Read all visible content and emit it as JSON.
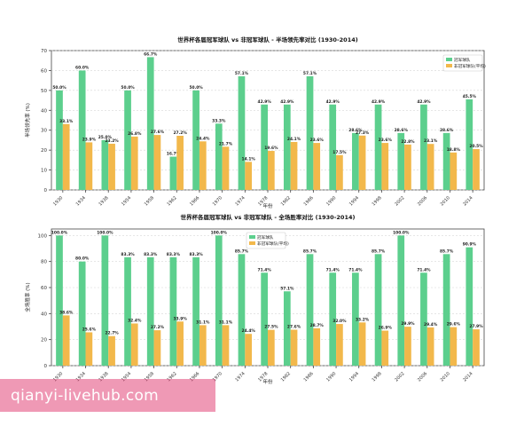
{
  "watermark": "qianyi-livehub.com",
  "colors": {
    "champion": "#5ccf8d",
    "non_champion": "#f2b84b"
  },
  "chart_data": [
    {
      "type": "bar",
      "title": "世界杯各届冠军球队 vs 非冠军球队 - 半场领先率对比 (1930-2014)",
      "xlabel": "年份",
      "ylabel": "半场领先率 (%)",
      "ylim": [
        0,
        70
      ],
      "yticks": [
        0,
        10,
        20,
        30,
        40,
        50,
        60,
        70
      ],
      "grid": true,
      "legend_position": "top-right",
      "categories": [
        "1930",
        "1934",
        "1938",
        "1954",
        "1958",
        "1962",
        "1966",
        "1970",
        "1974",
        "1978",
        "1982",
        "1986",
        "1990",
        "1994",
        "1998",
        "2002",
        "2006",
        "2010",
        "2014"
      ],
      "series": [
        {
          "name": "冠军球队",
          "values": [
            50.0,
            60.0,
            25.0,
            50.0,
            66.7,
            16.7,
            50.0,
            33.3,
            57.1,
            42.9,
            42.9,
            57.1,
            42.9,
            28.6,
            42.9,
            28.6,
            42.9,
            28.6,
            45.5
          ],
          "labels": [
            "50.0%",
            "60.0%",
            "25.0%",
            "50.0%",
            "66.7%",
            "16.7%",
            "50.0%",
            "33.3%",
            "57.1%",
            "42.9%",
            "42.9%",
            "57.1%",
            "42.9%",
            "28.6%",
            "42.9%",
            "28.6%",
            "42.9%",
            "28.6%",
            "45.5%"
          ]
        },
        {
          "name": "非冠军球队(平均)",
          "values": [
            33.1,
            23.9,
            23.2,
            26.8,
            27.6,
            27.2,
            24.4,
            21.7,
            14.1,
            19.6,
            24.1,
            23.6,
            17.5,
            27.3,
            23.6,
            22.8,
            23.1,
            18.8,
            20.5
          ],
          "labels": [
            "33.1%",
            "23.9%",
            "23.2%",
            "26.8%",
            "27.6%",
            "27.2%",
            "24.4%",
            "21.7%",
            "14.1%",
            "19.6%",
            "24.1%",
            "23.6%",
            "17.5%",
            "27.3%",
            "23.6%",
            "22.8%",
            "23.1%",
            "18.8%",
            "20.5%"
          ]
        }
      ]
    },
    {
      "type": "bar",
      "title": "世界杯各届冠军球队 vs 非冠军球队 - 全场胜率对比 (1930-2014)",
      "xlabel": "年份",
      "ylabel": "全场胜率 (%)",
      "ylim": [
        0,
        105
      ],
      "yticks": [
        0,
        20,
        40,
        60,
        80,
        100
      ],
      "grid": true,
      "legend_position": "top-center",
      "categories": [
        "1930",
        "1934",
        "1938",
        "1954",
        "1958",
        "1962",
        "1966",
        "1970",
        "1974",
        "1978",
        "1982",
        "1986",
        "1990",
        "1994",
        "1998",
        "2002",
        "2006",
        "2010",
        "2014"
      ],
      "series": [
        {
          "name": "冠军球队",
          "values": [
            100.0,
            80.0,
            100.0,
            83.3,
            83.3,
            83.3,
            83.3,
            100.0,
            85.7,
            71.4,
            57.1,
            85.7,
            71.4,
            71.4,
            85.7,
            100.0,
            71.4,
            85.7,
            90.9
          ],
          "labels": [
            "100.0%",
            "80.0%",
            "100.0%",
            "83.3%",
            "83.3%",
            "83.3%",
            "83.3%",
            "100.0%",
            "85.7%",
            "71.4%",
            "57.1%",
            "85.7%",
            "71.4%",
            "71.4%",
            "85.7%",
            "100.0%",
            "71.4%",
            "85.7%",
            "90.9%"
          ]
        },
        {
          "name": "非冠军球队(平均)",
          "values": [
            38.6,
            25.6,
            22.7,
            32.4,
            27.2,
            33.9,
            31.1,
            31.1,
            24.4,
            27.5,
            27.6,
            28.7,
            32.0,
            33.2,
            26.9,
            29.9,
            29.4,
            29.6,
            27.9
          ],
          "labels": [
            "38.6%",
            "25.6%",
            "22.7%",
            "32.4%",
            "27.2%",
            "33.9%",
            "31.1%",
            "31.1%",
            "24.4%",
            "27.5%",
            "27.6%",
            "28.7%",
            "32.0%",
            "33.2%",
            "26.9%",
            "29.9%",
            "29.4%",
            "29.6%",
            "27.9%"
          ]
        }
      ]
    }
  ]
}
